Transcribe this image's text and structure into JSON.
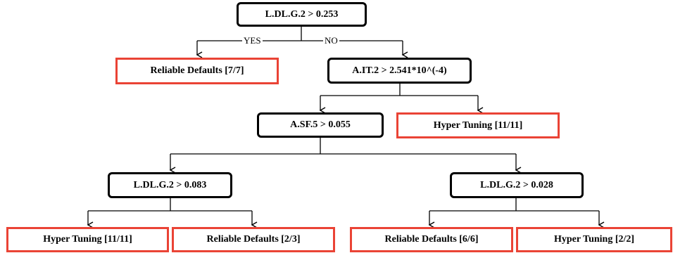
{
  "colors": {
    "decision_border": "#000000",
    "leaf_border": "#ea4335",
    "edge": "#000000"
  },
  "root": {
    "label": "L.DL.G.2 > 0.253",
    "yes_label": "YES",
    "no_label": "NO"
  },
  "leaf_reliable_7_7": "Reliable Defaults [7/7]",
  "node_ait2": "A.IT.2 > 2.541*10^(-4)",
  "node_asf5": "A.SF.5 > 0.055",
  "leaf_hyper_11_11_top": "Hyper Tuning [11/11]",
  "node_ldlg2_083": "L.DL.G.2 > 0.083",
  "node_ldlg2_028": "L.DL.G.2 > 0.028",
  "leaves_bottom": [
    "Hyper Tuning [11/11]",
    "Reliable Defaults [2/3]",
    "Reliable Defaults [6/6]",
    "Hyper Tuning [2/2]"
  ]
}
